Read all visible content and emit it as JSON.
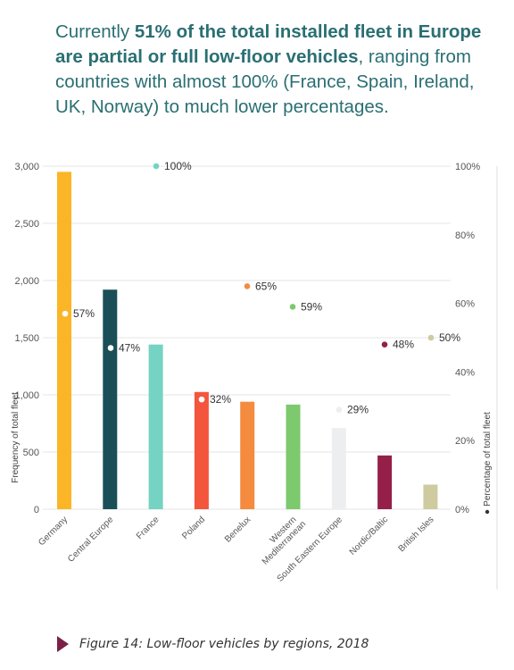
{
  "headline": {
    "part1": "Currently ",
    "bold1": "51% of the total installed fleet in Europe are partial or full low-floor vehicles",
    "part2": ", ranging from countries with almost 100% (France, Spain, Ireland, UK, Norway) to much lower percentages."
  },
  "caption": "Figure 14: Low-floor vehicles by regions, 2018",
  "chart_data": {
    "type": "bar",
    "categories": [
      "Germany",
      "Central Europe",
      "France",
      "Poland",
      "Benelux",
      "Western Mediterranean",
      "South Eastern Europe",
      "Nordic/Baltic",
      "British Isles"
    ],
    "category_lines": [
      [
        "Germany"
      ],
      [
        "Central Europe"
      ],
      [
        "France"
      ],
      [
        "Poland"
      ],
      [
        "Benelux"
      ],
      [
        "Western",
        "Mediterranean"
      ],
      [
        "South Eastern Europe"
      ],
      [
        "Nordic/Baltic"
      ],
      [
        "British Isles"
      ]
    ],
    "values": [
      2950,
      1920,
      1440,
      1025,
      940,
      915,
      710,
      470,
      215
    ],
    "percentages": [
      57,
      47,
      100,
      32,
      65,
      59,
      29,
      48,
      50
    ],
    "percent_labels": [
      "57%",
      "47%",
      "100%",
      "32%",
      "65%",
      "59%",
      "29%",
      "48%",
      "50%"
    ],
    "colors": [
      "#fbb526",
      "#1b4f57",
      "#75d3c3",
      "#f4553d",
      "#f58b3f",
      "#7dc96d",
      "#eceef0",
      "#94204a",
      "#cfcba0"
    ],
    "dot_colors": [
      "#ffffff",
      "#ffffff",
      "#75d3c3",
      "#ffffff",
      "#f58b3f",
      "#7dc96d",
      "#eceef0",
      "#94204a",
      "#cfcba0"
    ],
    "ylabel": "Frequency of total fleet",
    "y2label": "Percentage of total fleet",
    "ylim": [
      0,
      3000
    ],
    "y2lim": [
      0,
      100
    ],
    "y_ticks": [
      "0",
      "500",
      "1,000",
      "1,500",
      "2,000",
      "2,500",
      "3,000"
    ],
    "y_tick_values": [
      0,
      500,
      1000,
      1500,
      2000,
      2500,
      3000
    ],
    "y2_ticks": [
      "0%",
      "20%",
      "40%",
      "60%",
      "80%",
      "100%"
    ],
    "y2_tick_values": [
      0,
      20,
      40,
      60,
      80,
      100
    ],
    "grid": true
  }
}
